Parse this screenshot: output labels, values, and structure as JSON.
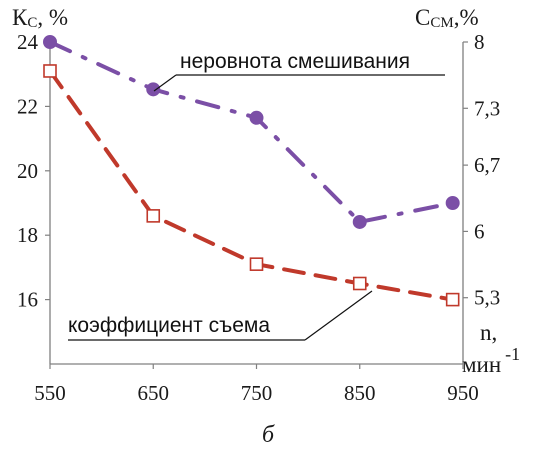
{
  "chart_data": {
    "type": "line",
    "x": [
      550,
      650,
      750,
      850,
      940
    ],
    "xlim": [
      550,
      950
    ],
    "x_ticks": [
      "550",
      "650",
      "750",
      "850",
      "950"
    ],
    "x_label_line1": "n,",
    "x_label_line2": "мин",
    "x_label_exp": "-1",
    "y_left": {
      "label_main": "К",
      "label_sub": "С",
      "label_tail": ", %",
      "lim": [
        14,
        24
      ],
      "ticks": [
        "16",
        "18",
        "20",
        "22",
        "24"
      ]
    },
    "y_right": {
      "label_main": "С",
      "label_sub": "СМ",
      "label_tail": ",%",
      "lim": [
        4.6,
        8
      ],
      "tick_values": [
        5.3,
        6,
        6.7,
        7.3,
        8
      ],
      "ticks": [
        "5,3",
        "6",
        "6,7",
        "7,3",
        "8"
      ]
    },
    "series": [
      {
        "name": "неровнота смешивания",
        "axis": "right",
        "values": [
          8.0,
          7.5,
          7.2,
          6.1,
          6.3
        ],
        "color": "#7b4fa6",
        "marker": "filled-circle",
        "line_style": "dash-dot"
      },
      {
        "name": "коэффициент съема",
        "axis": "left",
        "values": [
          23.1,
          18.6,
          17.1,
          16.5,
          16.0
        ],
        "color": "#c0392b",
        "marker": "open-square",
        "line_style": "dashed"
      }
    ],
    "grid": false,
    "caption": "б"
  }
}
